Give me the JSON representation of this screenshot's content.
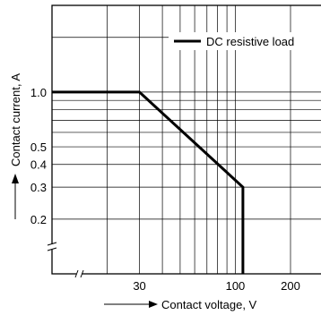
{
  "chart_data": {
    "type": "line",
    "xscale": "log",
    "yscale": "log",
    "xlim": [
      10,
      300
    ],
    "ylim": [
      0.1,
      3
    ],
    "xlabel": "Contact voltage, V",
    "ylabel": "Contact current, A",
    "x_tick_labels": [
      "30",
      "100",
      "200"
    ],
    "x_tick_values": [
      30,
      100,
      200
    ],
    "y_tick_labels": [
      "1.0",
      "0.5",
      "0.4",
      "0.3",
      "0.2"
    ],
    "y_tick_values": [
      1.0,
      0.5,
      0.4,
      0.3,
      0.2
    ],
    "x_grid": [
      20,
      30,
      40,
      50,
      60,
      70,
      80,
      90,
      100,
      200
    ],
    "y_grid": [
      0.2,
      0.3,
      0.4,
      0.5,
      0.6,
      0.7,
      0.8,
      0.9,
      1.0,
      2.0
    ],
    "grid": true,
    "legend_position": "top-right",
    "series": [
      {
        "name": "DC resistive load",
        "x": [
          10,
          30,
          110,
          110
        ],
        "y": [
          1.0,
          1.0,
          0.3,
          0.1
        ]
      }
    ]
  }
}
